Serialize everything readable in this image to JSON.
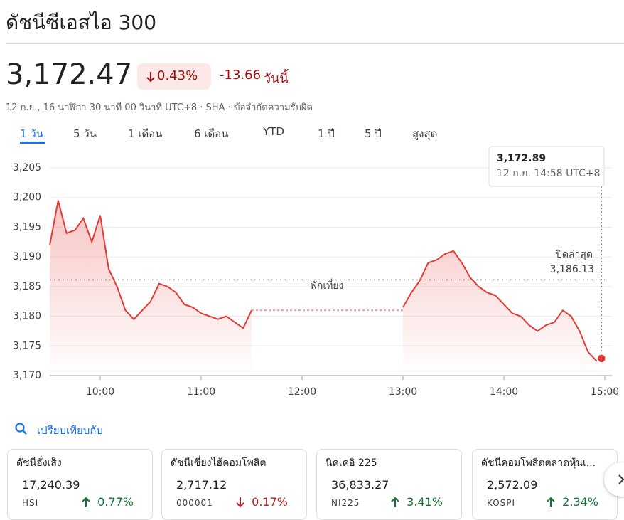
{
  "header": {
    "title": "ดัชนีซีเอสไอ 300",
    "price": "3,172.47",
    "change_percent": "0.43%",
    "change_value": "-13.66",
    "change_period": "วันนี้",
    "subtitle": "12 ก.ย., 16 นาฬิกา 30 นาที 00 วินาที UTC+8 · SHA · ข้อจำกัดความรับผิด",
    "tabs": [
      "1 วัน",
      "5 วัน",
      "1 เดือน",
      "6 เดือน",
      "YTD",
      "1 ปี",
      "5 ปี",
      "สูงสุด"
    ]
  },
  "chart_data": {
    "type": "line",
    "x": [
      "09:30",
      "09:35",
      "09:40",
      "09:45",
      "09:50",
      "09:55",
      "10:00",
      "10:05",
      "10:10",
      "10:15",
      "10:20",
      "10:25",
      "10:30",
      "10:35",
      "10:40",
      "10:45",
      "10:50",
      "10:55",
      "11:00",
      "11:05",
      "11:10",
      "11:15",
      "11:20",
      "11:25",
      "11:30",
      "12:00",
      "13:00",
      "13:05",
      "13:10",
      "13:15",
      "13:20",
      "13:25",
      "13:30",
      "13:35",
      "13:40",
      "13:45",
      "13:50",
      "13:55",
      "14:00",
      "14:05",
      "14:10",
      "14:15",
      "14:20",
      "14:25",
      "14:30",
      "14:35",
      "14:40",
      "14:45",
      "14:50",
      "14:55",
      "14:58"
    ],
    "series": [
      {
        "name": "ดัชนีซีเอสไอ 300",
        "color": "#e53935",
        "values": [
          3192,
          3199.5,
          3194,
          3194.5,
          3196.5,
          3192.5,
          3197,
          3188,
          3185,
          3181,
          3179.5,
          3181,
          3182.5,
          3185.5,
          3185,
          3184,
          3182,
          3181.5,
          3180.5,
          3180,
          3179.5,
          3180,
          3179,
          3178,
          3181,
          null,
          3181.5,
          3184,
          3186,
          3189,
          3189.5,
          3190.5,
          3191,
          3189,
          3186.5,
          3185,
          3184,
          3183.5,
          3182,
          3180.5,
          3180,
          3178.5,
          3177.5,
          3178.5,
          3179,
          3181,
          3180,
          3177.5,
          3174,
          3172.5,
          3172.89
        ]
      }
    ],
    "xlim": [
      "09:30",
      "15:00"
    ],
    "xticks": [
      "10:00",
      "11:00",
      "12:00",
      "13:00",
      "14:00",
      "15:00"
    ],
    "ylim": [
      3170,
      3205
    ],
    "yticks": [
      {
        "value": 3170,
        "label": "3,170"
      },
      {
        "value": 3175,
        "label": "3,175"
      },
      {
        "value": 3180,
        "label": "3,180"
      },
      {
        "value": 3185,
        "label": "3,185"
      },
      {
        "value": 3190,
        "label": "3,190"
      },
      {
        "value": 3195,
        "label": "3,195"
      },
      {
        "value": 3200,
        "label": "3,200"
      },
      {
        "value": 3205,
        "label": "3,205"
      }
    ],
    "grid": true,
    "previous_close": {
      "value": 3186.13,
      "label": "3,186.13"
    },
    "previous_close_text": "ปิดล่าสุด",
    "break_text": "พักเที่ยง",
    "tooltip": {
      "value": "3,172.89",
      "time": "12 ก.ย. 14:58 UTC+8"
    }
  },
  "compare": {
    "label": "เปรียบเทียบกับ",
    "cards": [
      {
        "name": "ดัชนีฮั่งเส็ง",
        "value": "17,240.39",
        "code": "HSI",
        "change": "0.77%",
        "color": "#137333"
      },
      {
        "name": "ดัชนีเซี่ยงไฮ้คอมโพสิต",
        "value": "2,717.12",
        "code": "000001",
        "change": "0.17%",
        "color": "#c5221f"
      },
      {
        "name": "นิคเคอิ 225",
        "value": "36,833.27",
        "code": "NI225",
        "change": "3.41%",
        "color": "#137333"
      },
      {
        "name": "ดัชนีคอมโพสิตตลาดหุ้นเ...",
        "value": "2,572.09",
        "code": "KOSPI",
        "change": "2.34%",
        "color": "#137333"
      }
    ]
  }
}
